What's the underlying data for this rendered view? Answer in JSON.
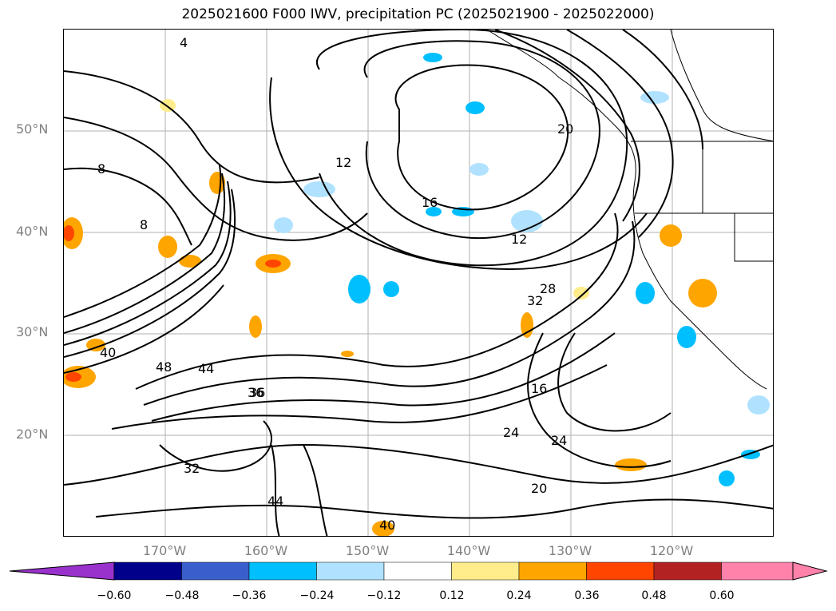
{
  "title": "2025021600 F000 IWV, precipitation PC (2025021900 - 2025022000)",
  "map": {
    "lat_labels": [
      "50°N",
      "40°N",
      "30°N",
      "20°N"
    ],
    "lon_labels": [
      "170°W",
      "160°W",
      "150°W",
      "140°W",
      "130°W",
      "120°W"
    ],
    "contour_labels": [
      "4",
      "8",
      "12",
      "16",
      "20",
      "24",
      "32",
      "36",
      "40",
      "44",
      "48",
      "28",
      "32",
      "24",
      "20",
      "16",
      "12",
      "8",
      "36",
      "40",
      "44"
    ],
    "colors": {
      "coast": "#000000",
      "grid": "#b0b0b0"
    }
  },
  "colorbar": {
    "ticks": [
      "−0.60",
      "−0.48",
      "−0.36",
      "−0.24",
      "−0.12",
      "0.12",
      "0.24",
      "0.36",
      "0.48",
      "0.60"
    ],
    "colors": [
      "#9932cc",
      "#00008b",
      "#3a5fcd",
      "#00bfff",
      "#b0e2ff",
      "#ffffff",
      "#ffec8b",
      "#ffa500",
      "#ff4500",
      "#b22222",
      "#ff82ab",
      "#ff82ab"
    ]
  }
}
